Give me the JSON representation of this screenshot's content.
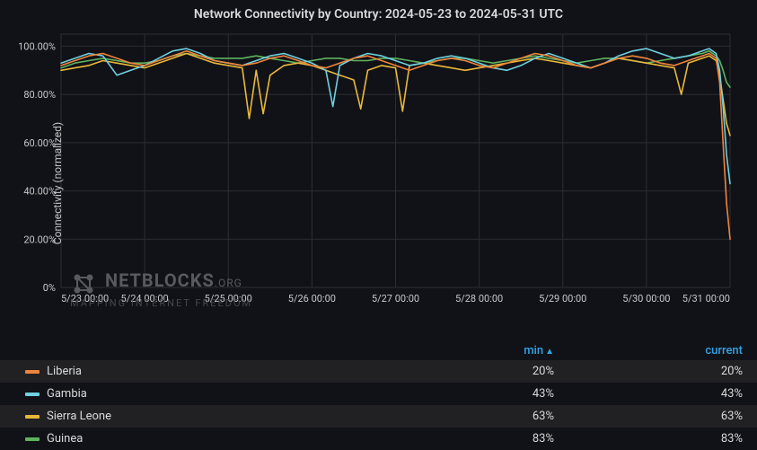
{
  "title": "Network Connectivity by Country: 2024-05-23 to 2024-05-31 UTC",
  "ylabel": "Connectivity (normalized)",
  "watermark": {
    "brand": "NETBLOCKS",
    "suffix": ".ORG",
    "sub": "MAPPING INTERNET FREEDOM"
  },
  "chart": {
    "type": "line",
    "background_color": "#111217",
    "grid_color": "#2c2d31",
    "text_color": "#c7c8c9",
    "ylim": [
      0,
      105
    ],
    "yticks": [
      0,
      20,
      40,
      60,
      80,
      100
    ],
    "ytick_labels": [
      "0%",
      "20.00%",
      "40.00%",
      "60.00%",
      "80.00%",
      "100.00%"
    ],
    "xticks": [
      0,
      24,
      48,
      72,
      96,
      120,
      144,
      168,
      192
    ],
    "xtick_labels": [
      "5/23 00:00",
      "5/24 00:00",
      "5/25 00:00",
      "5/26 00:00",
      "5/27 00:00",
      "5/28 00:00",
      "5/29 00:00",
      "5/30 00:00",
      "5/31 00:00"
    ],
    "line_width": 1.6,
    "series": [
      {
        "name": "Guinea",
        "color": "#5fb35f",
        "legend_min": "83%",
        "legend_current": "83%",
        "x": [
          0,
          4,
          8,
          12,
          16,
          20,
          24,
          28,
          32,
          36,
          40,
          44,
          48,
          52,
          56,
          60,
          64,
          68,
          72,
          76,
          80,
          84,
          88,
          92,
          96,
          100,
          104,
          108,
          112,
          116,
          120,
          124,
          128,
          132,
          136,
          140,
          144,
          148,
          152,
          156,
          160,
          164,
          168,
          172,
          176,
          180,
          184,
          186,
          188,
          189,
          190,
          191,
          192
        ],
        "y": [
          91,
          93,
          94,
          95,
          94,
          93,
          93,
          94,
          96,
          97,
          96,
          95,
          95,
          95,
          96,
          95,
          94,
          93,
          94,
          95,
          95,
          94,
          94,
          95,
          95,
          94,
          93,
          94,
          95,
          95,
          94,
          93,
          94,
          95,
          96,
          95,
          94,
          93,
          94,
          95,
          95,
          94,
          93,
          94,
          95,
          96,
          97,
          98,
          96,
          94,
          90,
          85,
          83
        ]
      },
      {
        "name": "Sierra Leone",
        "color": "#eab839",
        "legend_min": "63%",
        "legend_current": "63%",
        "x": [
          0,
          4,
          8,
          12,
          16,
          20,
          24,
          28,
          32,
          36,
          40,
          44,
          48,
          52,
          54,
          56,
          58,
          60,
          64,
          68,
          72,
          76,
          80,
          84,
          86,
          88,
          92,
          96,
          98,
          100,
          104,
          108,
          112,
          116,
          120,
          124,
          128,
          132,
          136,
          140,
          144,
          148,
          152,
          156,
          160,
          164,
          168,
          172,
          176,
          178,
          180,
          184,
          186,
          188,
          189,
          190,
          191,
          192
        ],
        "y": [
          90,
          91,
          92,
          94,
          93,
          92,
          91,
          93,
          95,
          97,
          95,
          93,
          92,
          91,
          70,
          90,
          72,
          88,
          92,
          93,
          92,
          90,
          88,
          86,
          74,
          90,
          92,
          91,
          73,
          92,
          93,
          92,
          91,
          90,
          91,
          92,
          93,
          94,
          95,
          94,
          93,
          92,
          91,
          93,
          95,
          94,
          93,
          92,
          91,
          80,
          93,
          95,
          96,
          94,
          88,
          78,
          68,
          63
        ]
      },
      {
        "name": "Gambia",
        "color": "#6ed0e0",
        "legend_min": "43%",
        "legend_current": "43%",
        "x": [
          0,
          4,
          8,
          12,
          16,
          20,
          24,
          28,
          32,
          36,
          40,
          44,
          48,
          52,
          56,
          60,
          64,
          68,
          72,
          76,
          78,
          80,
          84,
          88,
          92,
          96,
          100,
          104,
          108,
          112,
          116,
          120,
          124,
          128,
          132,
          136,
          140,
          144,
          148,
          152,
          156,
          160,
          164,
          168,
          172,
          176,
          180,
          184,
          186,
          188,
          189,
          190,
          191,
          192
        ],
        "y": [
          93,
          95,
          97,
          96,
          88,
          90,
          92,
          95,
          98,
          99,
          97,
          94,
          93,
          92,
          94,
          96,
          97,
          95,
          93,
          90,
          75,
          92,
          95,
          97,
          96,
          94,
          92,
          93,
          95,
          96,
          95,
          93,
          91,
          90,
          92,
          95,
          97,
          95,
          93,
          91,
          93,
          96,
          98,
          99,
          97,
          95,
          96,
          98,
          99,
          97,
          90,
          75,
          55,
          43
        ]
      },
      {
        "name": "Liberia",
        "color": "#ef843c",
        "legend_min": "20%",
        "legend_current": "20%",
        "x": [
          0,
          4,
          8,
          12,
          16,
          20,
          24,
          28,
          32,
          36,
          40,
          44,
          48,
          52,
          56,
          60,
          64,
          68,
          72,
          76,
          80,
          84,
          88,
          92,
          96,
          100,
          104,
          108,
          112,
          116,
          120,
          124,
          128,
          132,
          136,
          140,
          144,
          148,
          152,
          156,
          160,
          164,
          168,
          172,
          176,
          180,
          184,
          186,
          188,
          189,
          190,
          191,
          192
        ],
        "y": [
          92,
          94,
          96,
          97,
          95,
          93,
          92,
          94,
          96,
          98,
          96,
          94,
          93,
          92,
          93,
          95,
          96,
          94,
          92,
          91,
          93,
          95,
          96,
          94,
          92,
          90,
          92,
          94,
          95,
          94,
          92,
          91,
          93,
          95,
          97,
          96,
          94,
          92,
          91,
          93,
          95,
          96,
          95,
          93,
          92,
          94,
          96,
          97,
          95,
          85,
          60,
          35,
          20
        ]
      }
    ]
  },
  "legend": {
    "columns": [
      "min",
      "current"
    ],
    "sort_column": "min",
    "sort_dir": "asc",
    "rows": [
      {
        "name": "Liberia",
        "color": "#ef843c",
        "min": "20%",
        "current": "20%"
      },
      {
        "name": "Gambia",
        "color": "#6ed0e0",
        "min": "43%",
        "current": "43%"
      },
      {
        "name": "Sierra Leone",
        "color": "#eab839",
        "min": "63%",
        "current": "63%"
      },
      {
        "name": "Guinea",
        "color": "#5fb35f",
        "min": "83%",
        "current": "83%"
      }
    ]
  }
}
